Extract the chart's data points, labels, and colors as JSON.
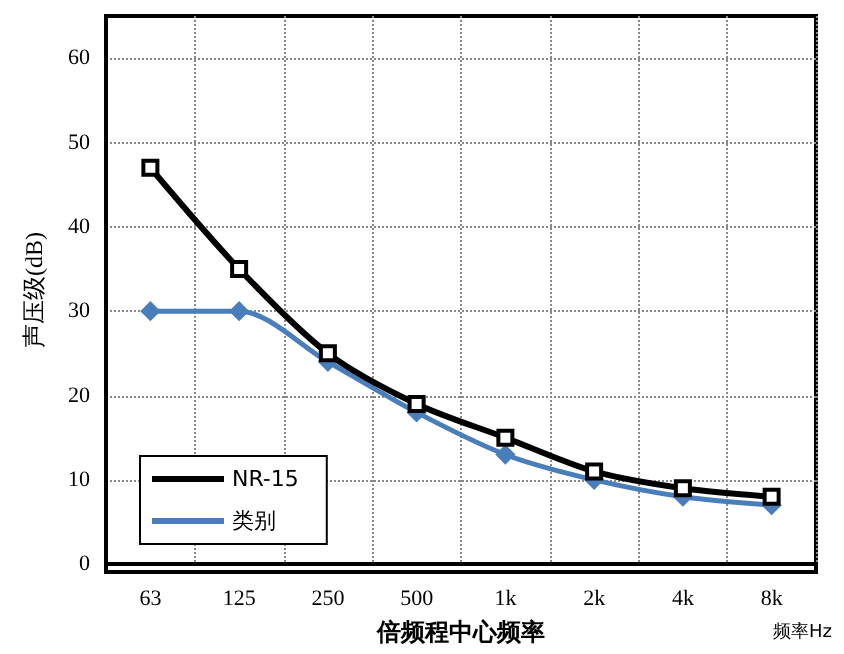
{
  "chart_data": {
    "type": "line",
    "xlabel": "倍频程中心频率",
    "ylabel": "声压级(dB)",
    "categories": [
      "63",
      "125",
      "250",
      "500",
      "1k",
      "2k",
      "4k",
      "8k"
    ],
    "series": [
      {
        "name": "NR-15",
        "color": "#000000",
        "marker": "square",
        "values": [
          47,
          35,
          25,
          19,
          15,
          11,
          9,
          8
        ]
      },
      {
        "name": "类别",
        "color": "#4a7ebb",
        "marker": "diamond",
        "values": [
          30,
          30,
          24,
          18,
          13,
          10,
          8,
          7
        ]
      }
    ],
    "ylim": [
      0,
      65
    ],
    "yticks": [
      0,
      10,
      20,
      30,
      40,
      50,
      60
    ],
    "grid": true,
    "legend": "bottom left",
    "annotations": [
      "频率Hz"
    ]
  }
}
